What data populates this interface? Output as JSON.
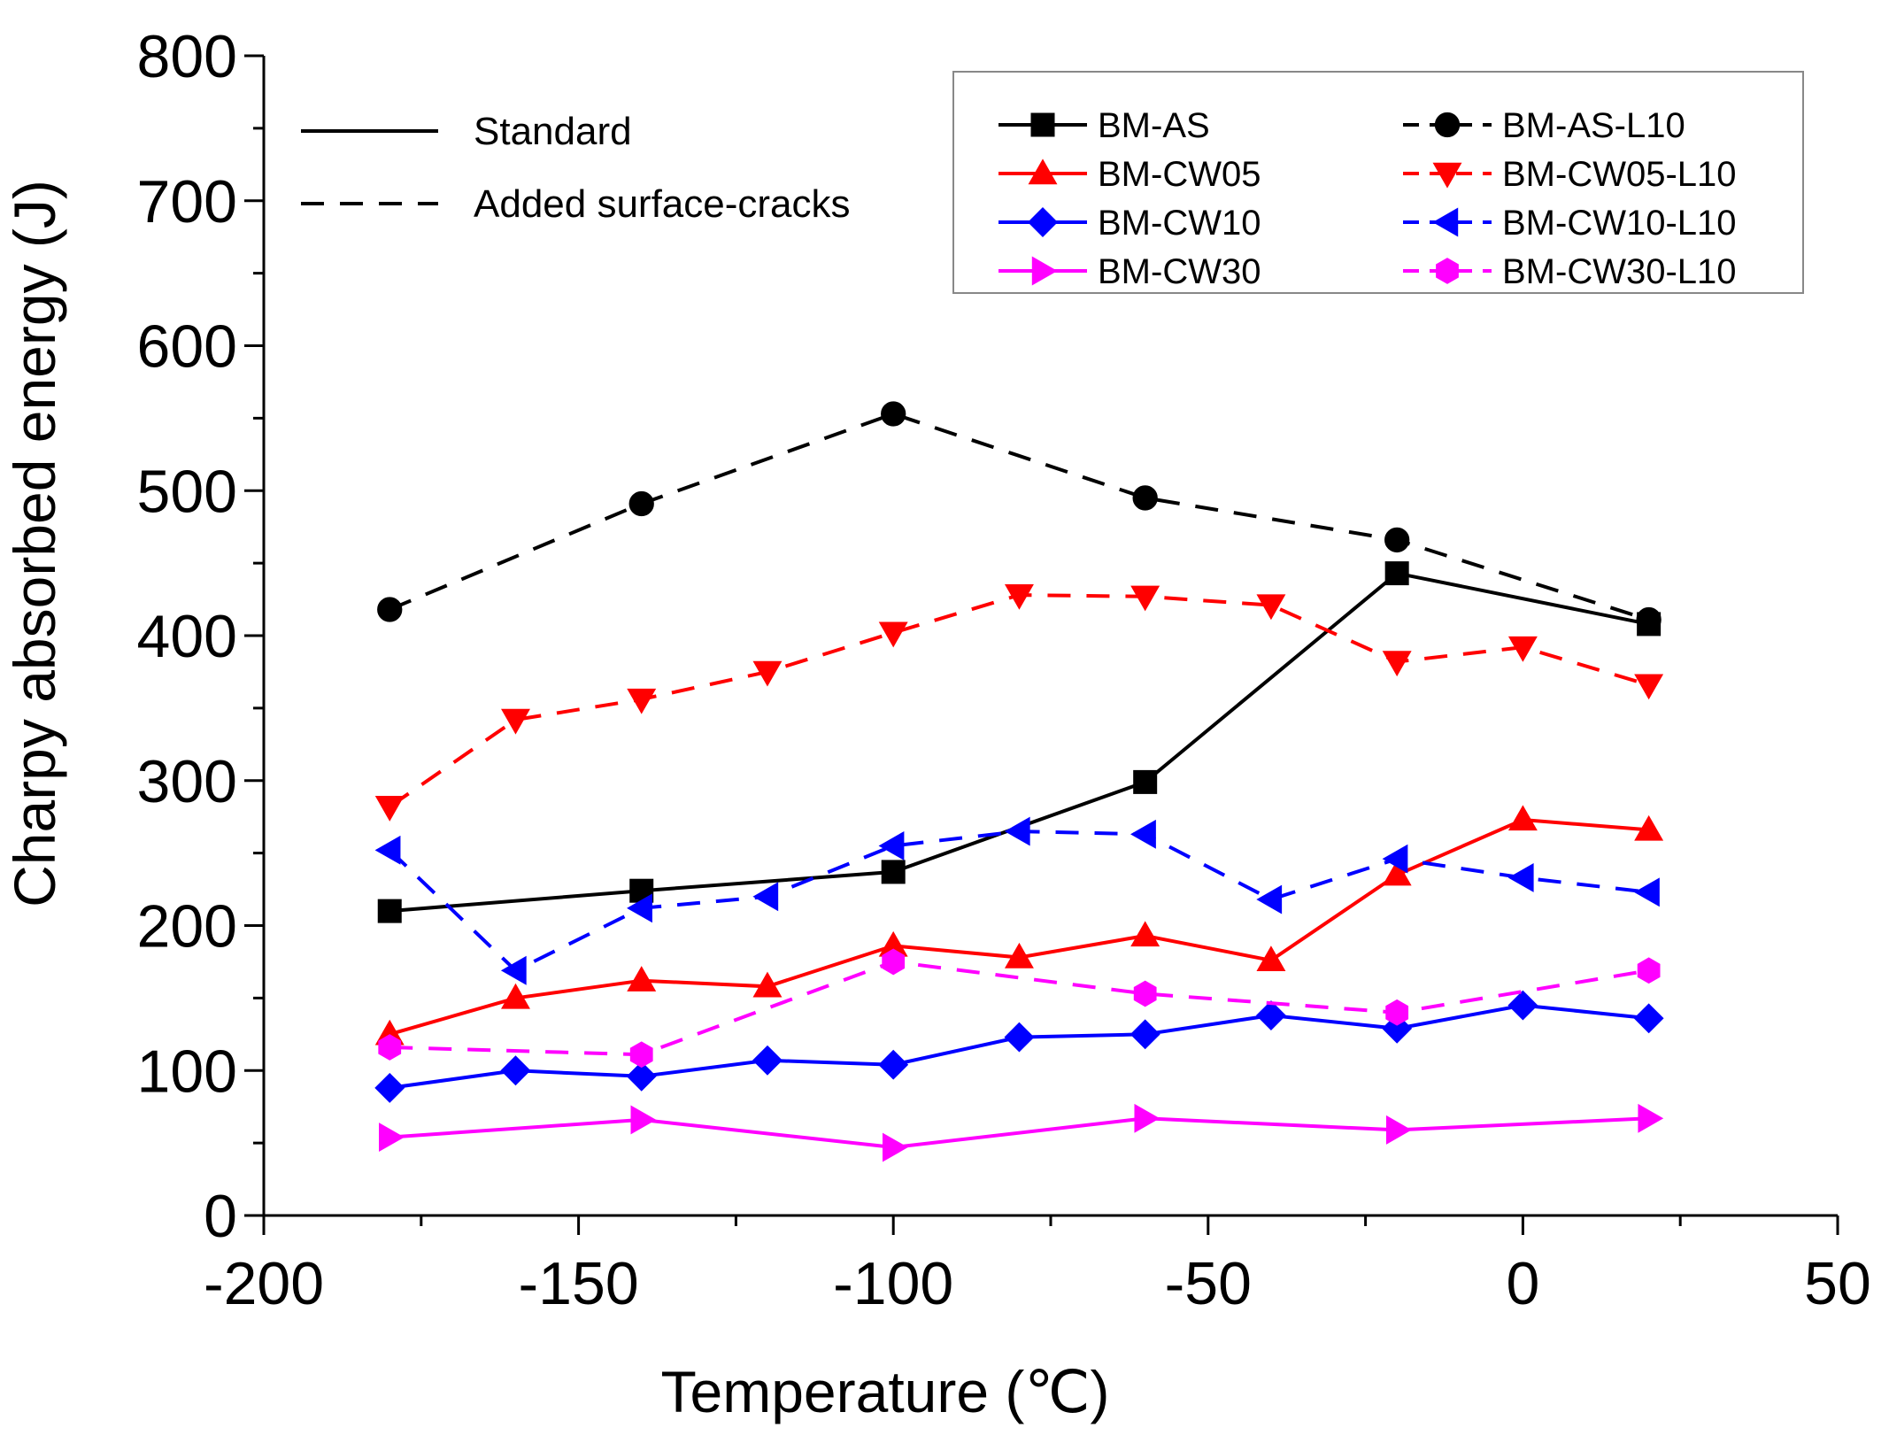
{
  "chart_data": {
    "type": "line",
    "xlabel": "Temperature (℃)",
    "ylabel": "Charpy absorbed energy (J)",
    "xlim": [
      -200,
      50
    ],
    "ylim": [
      0,
      800
    ],
    "x_ticks": [
      -200,
      -150,
      -100,
      -50,
      0,
      50
    ],
    "y_ticks": [
      0,
      100,
      200,
      300,
      400,
      500,
      600,
      700,
      800
    ],
    "x_tick_labels": [
      "-200",
      "-150",
      "-100",
      "-50",
      "0",
      "50"
    ],
    "y_tick_labels": [
      "0",
      "100",
      "200",
      "300",
      "400",
      "500",
      "600",
      "700",
      "800"
    ],
    "line_style_legend": [
      {
        "label": "Standard",
        "dash": "solid"
      },
      {
        "label": "Added surface-cracks",
        "dash": "dashed"
      }
    ],
    "series": [
      {
        "name": "BM-AS",
        "color": "#000000",
        "marker": "square",
        "dash": "solid",
        "x": [
          -180,
          -140,
          -100,
          -60,
          -20,
          20
        ],
        "y": [
          210,
          224,
          237,
          299,
          443,
          408
        ]
      },
      {
        "name": "BM-AS-L10",
        "color": "#000000",
        "marker": "circle",
        "dash": "dashed",
        "x": [
          -180,
          -140,
          -100,
          -60,
          -20,
          20
        ],
        "y": [
          418,
          491,
          553,
          495,
          466,
          411
        ]
      },
      {
        "name": "BM-CW05",
        "color": "#ff0000",
        "marker": "triangle-up",
        "dash": "solid",
        "x": [
          -180,
          -160,
          -140,
          -120,
          -100,
          -80,
          -60,
          -40,
          -20,
          0,
          20
        ],
        "y": [
          125,
          150,
          162,
          158,
          186,
          178,
          193,
          176,
          235,
          273,
          266
        ]
      },
      {
        "name": "BM-CW05-L10",
        "color": "#ff0000",
        "marker": "triangle-down",
        "dash": "dashed",
        "x": [
          -180,
          -160,
          -140,
          -120,
          -100,
          -80,
          -60,
          -40,
          -20,
          0,
          20
        ],
        "y": [
          282,
          342,
          356,
          375,
          402,
          428,
          427,
          421,
          382,
          392,
          366
        ]
      },
      {
        "name": "BM-CW10",
        "color": "#0000ff",
        "marker": "diamond",
        "dash": "solid",
        "x": [
          -180,
          -160,
          -140,
          -120,
          -100,
          -80,
          -60,
          -40,
          -20,
          0,
          20
        ],
        "y": [
          88,
          100,
          96,
          107,
          104,
          123,
          125,
          138,
          129,
          145,
          136
        ]
      },
      {
        "name": "BM-CW10-L10",
        "color": "#0000ff",
        "marker": "triangle-left",
        "dash": "dashed",
        "x": [
          -180,
          -160,
          -140,
          -120,
          -100,
          -80,
          -60,
          -40,
          -20,
          0,
          20
        ],
        "y": [
          252,
          169,
          212,
          220,
          255,
          265,
          263,
          218,
          246,
          233,
          223
        ]
      },
      {
        "name": "BM-CW30",
        "color": "#ff00ff",
        "marker": "triangle-right",
        "dash": "solid",
        "x": [
          -180,
          -140,
          -100,
          -60,
          -20,
          20
        ],
        "y": [
          54,
          66,
          47,
          67,
          59,
          67
        ]
      },
      {
        "name": "BM-CW30-L10",
        "color": "#ff00ff",
        "marker": "hexagon",
        "dash": "dashed",
        "x": [
          -180,
          -140,
          -100,
          -60,
          -20,
          20
        ],
        "y": [
          116,
          111,
          175,
          153,
          140,
          169
        ]
      }
    ]
  }
}
